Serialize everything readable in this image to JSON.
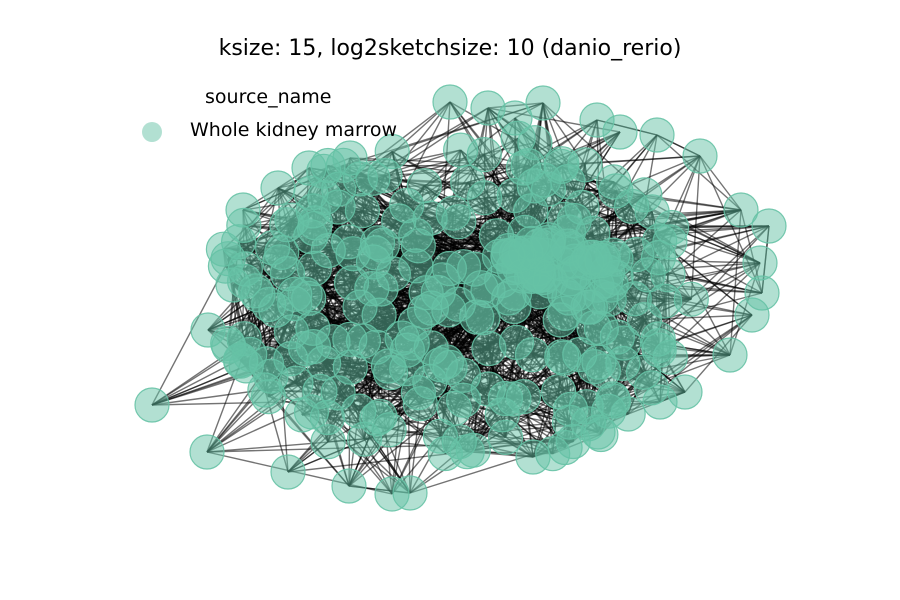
{
  "title": "ksize: 15, log2sketchsize: 10 (danio_rerio)",
  "legend": {
    "title": "source_name",
    "entries": [
      {
        "label": "Whole kidney marrow",
        "color": "#66c2a5"
      }
    ]
  },
  "graph": {
    "node_color": "#66c2a5",
    "node_opacity": 0.5,
    "edge_color": "#000000",
    "edge_opacity": 0.55
  }
}
